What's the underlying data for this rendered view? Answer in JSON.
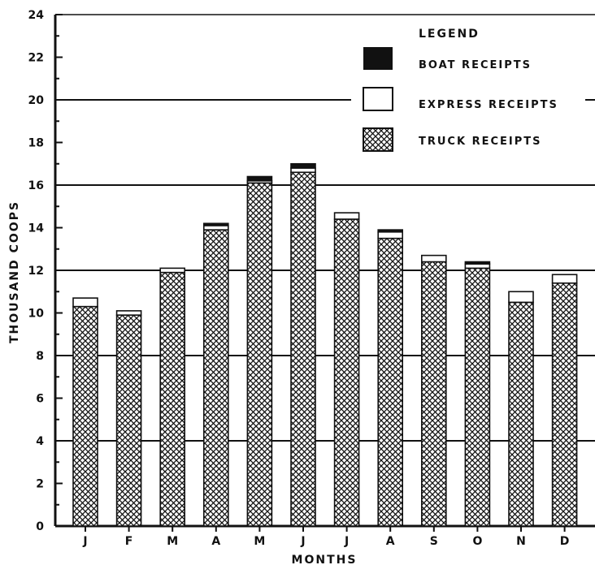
{
  "chart_data": {
    "type": "bar",
    "stacked": true,
    "xlabel": "MONTHS",
    "ylabel": "THOUSAND COOPS",
    "ylim": [
      0,
      24
    ],
    "yticks": [
      "0",
      "2",
      "4",
      "6",
      "8",
      "10",
      "12",
      "14",
      "16",
      "18",
      "20",
      "22",
      "24"
    ],
    "grid": "horizontal lines at 4, 8, 12, 16, 20",
    "categories": [
      "J",
      "F",
      "M",
      "A",
      "M",
      "J",
      "J",
      "A",
      "S",
      "O",
      "N",
      "D"
    ],
    "legend": {
      "title": "LEGEND",
      "placement": "top-right"
    },
    "series": [
      {
        "name": "TRUCK RECEIPTS",
        "pattern": "crosshatch",
        "values": [
          10.3,
          9.9,
          11.9,
          13.9,
          16.1,
          16.6,
          14.4,
          13.5,
          12.4,
          12.1,
          10.5,
          11.4
        ]
      },
      {
        "name": "EXPRESS RECEIPTS",
        "pattern": "white",
        "values": [
          0.4,
          0.2,
          0.2,
          0.2,
          0.1,
          0.2,
          0.3,
          0.3,
          0.3,
          0.2,
          0.5,
          0.4
        ]
      },
      {
        "name": "BOAT RECEIPTS",
        "pattern": "black",
        "values": [
          0,
          0,
          0,
          0.1,
          0.2,
          0.2,
          0,
          0.1,
          0,
          0.1,
          0,
          0
        ]
      }
    ],
    "colors": {
      "ink": "#111111",
      "paper": "#ffffff"
    }
  }
}
